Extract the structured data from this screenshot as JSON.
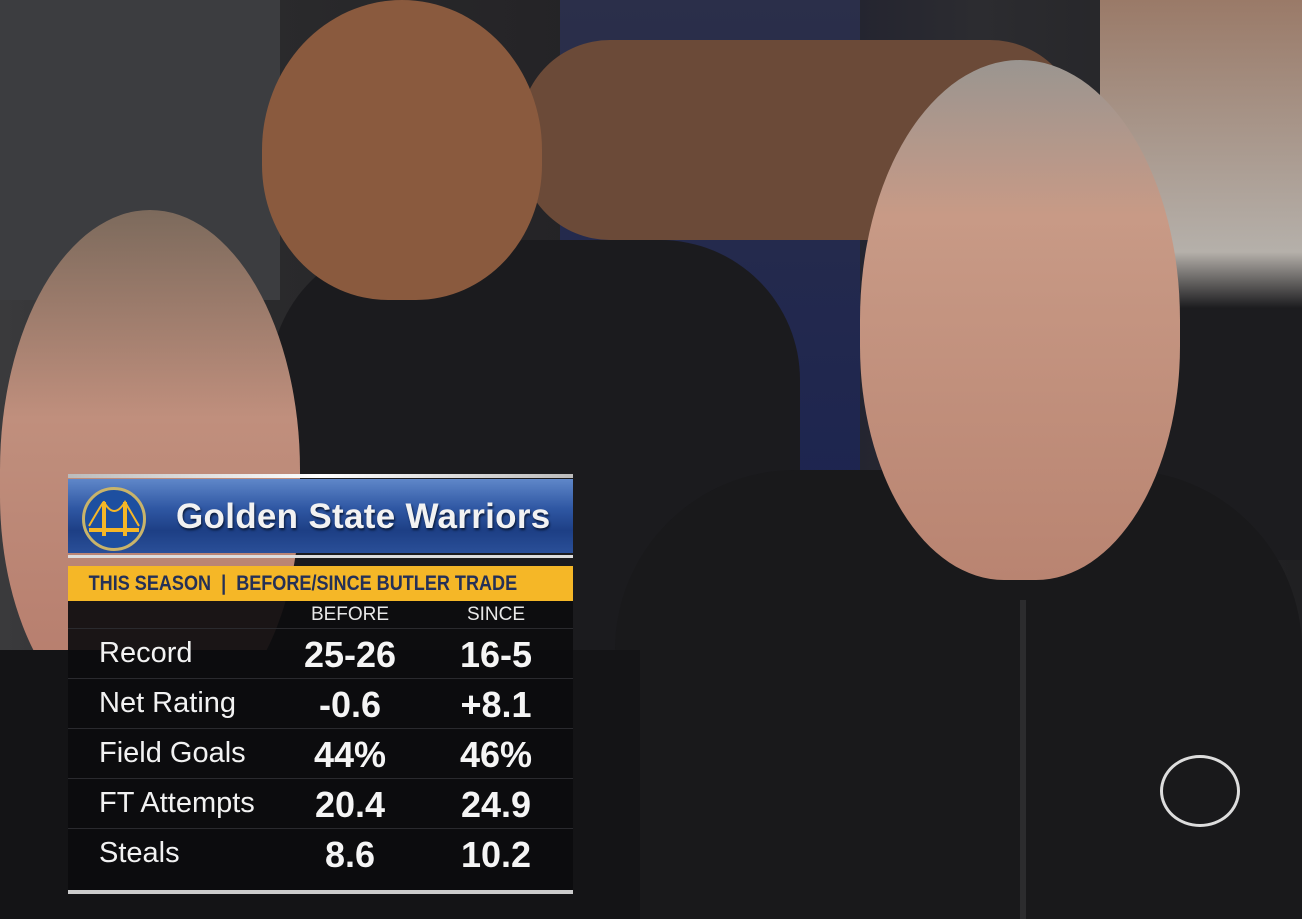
{
  "graphic": {
    "title": "Golden State Warriors",
    "subtitle": "THIS SEASON  |  BEFORE/SINCE BUTLER TRADE",
    "columns": [
      "BEFORE",
      "SINCE"
    ],
    "rows": [
      {
        "label": "Record",
        "before": "25-26",
        "since": "16-5"
      },
      {
        "label": "Net Rating",
        "before": "-0.6",
        "since": "+8.1"
      },
      {
        "label": "Field Goals",
        "before": "44%",
        "since": "46%"
      },
      {
        "label": "FT Attempts",
        "before": "20.4",
        "since": "24.9"
      },
      {
        "label": "Steals",
        "before": "8.6",
        "since": "10.2"
      }
    ],
    "colors": {
      "header_blue": "#2f57a3",
      "subbar_gold": "#f5b727",
      "subbar_text": "#243057"
    },
    "logo_icon": "warriors-bridge-logo"
  }
}
